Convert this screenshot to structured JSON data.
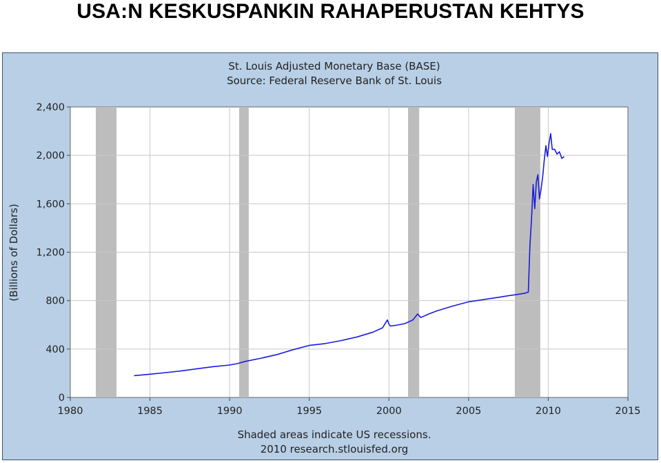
{
  "slide": {
    "title": "USA:N KESKUSPANKIN RAHAPERUSTAN KEHTYS"
  },
  "chart_data": {
    "type": "line",
    "title": "St. Louis Adjusted Monetary Base (BASE)",
    "subtitle": "Source: Federal Reserve Bank of St. Louis",
    "ylabel": "(Billions of Dollars)",
    "xlabel": "",
    "footnote_1": "Shaded areas indicate US recessions.",
    "footnote_2": "2010 research.stlouisfed.org",
    "xlim": [
      1980,
      2015
    ],
    "ylim": [
      0,
      2400
    ],
    "x_ticks": [
      1980,
      1985,
      1990,
      1995,
      2000,
      2005,
      2010,
      2015
    ],
    "y_ticks": [
      0,
      400,
      800,
      1200,
      1600,
      2000,
      2400
    ],
    "x_tick_labels": [
      "1980",
      "1985",
      "1990",
      "1995",
      "2000",
      "2005",
      "2010",
      "2015"
    ],
    "y_tick_labels": [
      "0",
      "400",
      "800",
      "1,200",
      "1,600",
      "2,000",
      "2,400"
    ],
    "grid": true,
    "recessions": [
      [
        1981.6,
        1982.9
      ],
      [
        1990.6,
        1991.2
      ],
      [
        2001.2,
        2001.9
      ],
      [
        2007.9,
        2009.5
      ]
    ],
    "colors": {
      "line": "#1a1adc",
      "recession": "#bdbdbd",
      "plot_bg": "#ffffff",
      "frame_bg": "#b8cfe6",
      "grid": "#c8c8c8"
    },
    "series": [
      {
        "x": [
          1984.0,
          1985.0,
          1986.0,
          1987.0,
          1988.0,
          1989.0,
          1990.0,
          1990.5,
          1991.0,
          1992.0,
          1993.0,
          1994.0,
          1995.0,
          1996.0,
          1997.0,
          1998.0,
          1999.0,
          1999.6,
          1999.9,
          2000.0,
          2000.1,
          2000.4,
          2001.0,
          2001.5,
          2001.8,
          2002.0,
          2002.5,
          2003.0,
          2004.0,
          2005.0,
          2006.0,
          2007.0,
          2007.5,
          2008.0,
          2008.5,
          2008.75,
          2008.85,
          2008.95,
          2009.05,
          2009.15,
          2009.25,
          2009.35,
          2009.45,
          2009.55,
          2009.65,
          2009.75,
          2009.85,
          2009.95,
          2010.05,
          2010.15,
          2010.25,
          2010.4,
          2010.55,
          2010.7,
          2010.85,
          2011.0
        ],
        "values": [
          180,
          192,
          205,
          220,
          238,
          255,
          268,
          280,
          298,
          325,
          355,
          395,
          430,
          445,
          470,
          500,
          540,
          575,
          640,
          605,
          590,
          595,
          610,
          640,
          690,
          660,
          690,
          715,
          755,
          790,
          810,
          830,
          840,
          850,
          860,
          870,
          1250,
          1480,
          1760,
          1560,
          1780,
          1840,
          1640,
          1720,
          1820,
          1960,
          2080,
          1990,
          2100,
          2180,
          2050,
          2050,
          2010,
          2030,
          1975,
          1990
        ]
      }
    ]
  }
}
